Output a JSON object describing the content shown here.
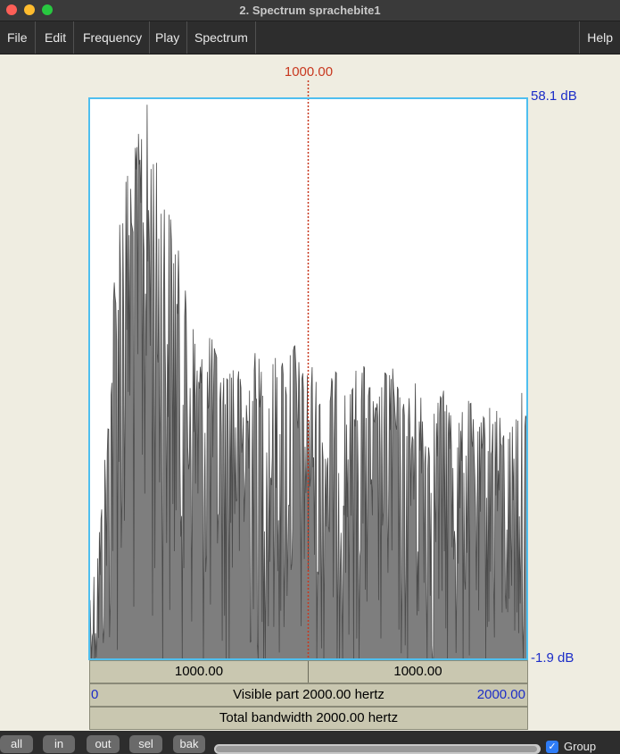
{
  "window": {
    "title": "2. Spectrum sprachebite1"
  },
  "menu": {
    "file": "File",
    "edit": "Edit",
    "frequency": "Frequency",
    "play": "Play",
    "spectrum": "Spectrum",
    "help": "Help"
  },
  "plot": {
    "cursor_label": "1000.00",
    "db_top": "58.1 dB",
    "db_bottom": "-1.9 dB",
    "left_half": "1000.00",
    "right_half": "1000.00",
    "visible_start": "0",
    "visible_label": "Visible part 2000.00 hertz",
    "visible_end": "2000.00",
    "total_label": "Total bandwidth 2000.00 hertz"
  },
  "chart_data": {
    "type": "line",
    "x_range": [
      0,
      2000
    ],
    "y_range": [
      -1.9,
      58.1
    ],
    "cursor_x": 1000,
    "series_color": "#4a4a4a",
    "values": [
      5,
      8,
      15,
      25,
      40,
      48,
      50,
      52,
      55,
      58,
      53,
      50,
      47,
      45,
      42,
      38,
      35,
      32,
      30,
      33,
      31,
      28,
      30,
      32,
      27,
      29,
      31,
      30,
      26,
      30,
      31,
      29,
      33,
      30,
      28,
      30,
      27,
      25,
      28,
      29,
      27,
      26,
      29,
      30,
      28,
      25,
      27,
      30,
      29,
      26,
      25,
      28,
      27,
      25,
      24,
      26,
      27,
      25,
      23,
      25,
      26,
      22,
      24,
      25,
      26,
      23,
      22,
      24,
      27,
      24
    ]
  },
  "bottom": {
    "all": "all",
    "in": "in",
    "out": "out",
    "sel": "sel",
    "bak": "bak",
    "group": "Group"
  },
  "colors": {
    "accent": "#1c2dc8",
    "cursor": "#c8381f",
    "frame": "#4fbfef"
  }
}
